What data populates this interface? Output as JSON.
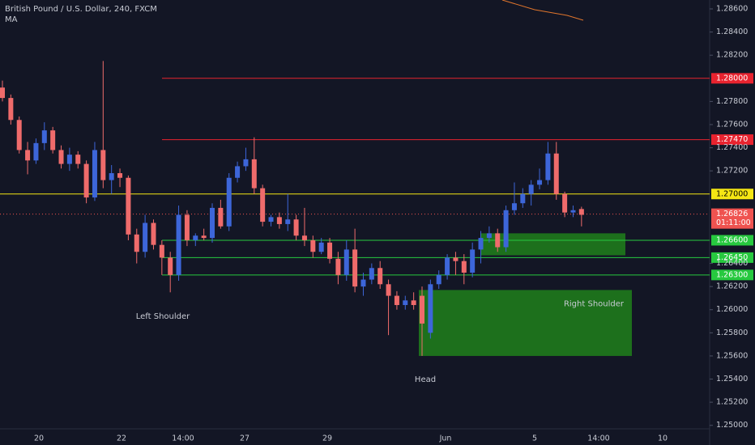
{
  "chart_data": {
    "type": "candlestick",
    "title": "British Pound / U.S. Dollar, 240, FXCM",
    "indicator": "MA",
    "up_color": "#3d66d9",
    "down_color": "#ef6b6b",
    "ylim": [
      1.2497,
      1.28677
    ],
    "yticks": [
      {
        "value": 1.286,
        "label": "1.28600"
      },
      {
        "value": 1.284,
        "label": "1.28400"
      },
      {
        "value": 1.282,
        "label": "1.28200"
      },
      {
        "value": 1.278,
        "label": "1.27800"
      },
      {
        "value": 1.276,
        "label": "1.27600"
      },
      {
        "value": 1.274,
        "label": "1.27400"
      },
      {
        "value": 1.272,
        "label": "1.27200"
      },
      {
        "value": 1.264,
        "label": "1.26400"
      },
      {
        "value": 1.262,
        "label": "1.26200"
      },
      {
        "value": 1.26,
        "label": "1.26000"
      },
      {
        "value": 1.258,
        "label": "1.25800"
      },
      {
        "value": 1.256,
        "label": "1.25600"
      },
      {
        "value": 1.254,
        "label": "1.25400"
      },
      {
        "value": 1.252,
        "label": "1.25200"
      },
      {
        "value": 1.25,
        "label": "1.25000"
      }
    ],
    "x_labels": [
      "20",
      "22",
      "14:00",
      "27",
      "29",
      "Jun",
      "5",
      "14:00",
      "10"
    ],
    "candles": [
      [
        1.2792,
        1.2798,
        1.278,
        1.2783
      ],
      [
        1.2783,
        1.2786,
        1.276,
        1.2764
      ],
      [
        1.2764,
        1.2767,
        1.2735,
        1.2738
      ],
      [
        1.2738,
        1.2745,
        1.2717,
        1.2729
      ],
      [
        1.2729,
        1.2748,
        1.2726,
        1.2744
      ],
      [
        1.2744,
        1.2762,
        1.2738,
        1.2755
      ],
      [
        1.2755,
        1.2758,
        1.2735,
        1.2738
      ],
      [
        1.2738,
        1.2742,
        1.2722,
        1.2726
      ],
      [
        1.2726,
        1.274,
        1.272,
        1.2734
      ],
      [
        1.2734,
        1.2737,
        1.2722,
        1.2726
      ],
      [
        1.2726,
        1.2729,
        1.2692,
        1.2697
      ],
      [
        1.2697,
        1.2745,
        1.2694,
        1.2738
      ],
      [
        1.2738,
        1.2815,
        1.2705,
        1.2712
      ],
      [
        1.2712,
        1.2725,
        1.27,
        1.2718
      ],
      [
        1.2718,
        1.2722,
        1.2706,
        1.2714
      ],
      [
        1.2714,
        1.2716,
        1.266,
        1.2665
      ],
      [
        1.2665,
        1.267,
        1.264,
        1.265
      ],
      [
        1.265,
        1.2682,
        1.2645,
        1.2675
      ],
      [
        1.2675,
        1.2678,
        1.2652,
        1.2656
      ],
      [
        1.2656,
        1.266,
        1.263,
        1.2645
      ],
      [
        1.2645,
        1.265,
        1.2615,
        1.263
      ],
      [
        1.263,
        1.269,
        1.2625,
        1.2682
      ],
      [
        1.2682,
        1.2686,
        1.2655,
        1.266
      ],
      [
        1.266,
        1.2666,
        1.2655,
        1.2664
      ],
      [
        1.2664,
        1.267,
        1.266,
        1.2662
      ],
      [
        1.2662,
        1.2692,
        1.2658,
        1.2688
      ],
      [
        1.2688,
        1.2695,
        1.267,
        1.2672
      ],
      [
        1.2672,
        1.2718,
        1.2668,
        1.2714
      ],
      [
        1.2714,
        1.2728,
        1.271,
        1.2724
      ],
      [
        1.2724,
        1.274,
        1.272,
        1.273
      ],
      [
        1.273,
        1.2749,
        1.27,
        1.2705
      ],
      [
        1.2705,
        1.2708,
        1.2672,
        1.2676
      ],
      [
        1.2676,
        1.2682,
        1.2672,
        1.268
      ],
      [
        1.268,
        1.2684,
        1.267,
        1.2674
      ],
      [
        1.2674,
        1.27,
        1.2668,
        1.2678
      ],
      [
        1.2678,
        1.2682,
        1.266,
        1.2664
      ],
      [
        1.2664,
        1.2688,
        1.2655,
        1.266
      ],
      [
        1.266,
        1.2664,
        1.2645,
        1.265
      ],
      [
        1.265,
        1.2662,
        1.2648,
        1.2658
      ],
      [
        1.2658,
        1.2662,
        1.264,
        1.2644
      ],
      [
        1.2644,
        1.265,
        1.2622,
        1.263
      ],
      [
        1.263,
        1.266,
        1.2625,
        1.2652
      ],
      [
        1.2652,
        1.267,
        1.2615,
        1.262
      ],
      [
        1.262,
        1.2632,
        1.2612,
        1.2626
      ],
      [
        1.2626,
        1.264,
        1.2622,
        1.2636
      ],
      [
        1.2636,
        1.2642,
        1.2618,
        1.2622
      ],
      [
        1.2622,
        1.2626,
        1.2578,
        1.2612
      ],
      [
        1.2612,
        1.2616,
        1.26,
        1.2604
      ],
      [
        1.2604,
        1.2612,
        1.26,
        1.2608
      ],
      [
        1.2608,
        1.2615,
        1.26,
        1.2604
      ],
      [
        1.2612,
        1.262,
        1.256,
        1.2588
      ],
      [
        1.258,
        1.2626,
        1.2575,
        1.2622
      ],
      [
        1.2622,
        1.2634,
        1.2618,
        1.263
      ],
      [
        1.263,
        1.2648,
        1.2626,
        1.2645
      ],
      [
        1.2645,
        1.265,
        1.263,
        1.2642
      ],
      [
        1.2642,
        1.2648,
        1.2622,
        1.2632
      ],
      [
        1.2632,
        1.2658,
        1.2628,
        1.2652
      ],
      [
        1.2652,
        1.2668,
        1.264,
        1.2662
      ],
      [
        1.2662,
        1.2672,
        1.2658,
        1.2666
      ],
      [
        1.2666,
        1.267,
        1.265,
        1.2654
      ],
      [
        1.2654,
        1.269,
        1.265,
        1.2686
      ],
      [
        1.2686,
        1.271,
        1.2682,
        1.2692
      ],
      [
        1.2692,
        1.2705,
        1.2688,
        1.27
      ],
      [
        1.27,
        1.2712,
        1.269,
        1.2708
      ],
      [
        1.2708,
        1.2722,
        1.2704,
        1.2712
      ],
      [
        1.2712,
        1.2745,
        1.2708,
        1.2735
      ],
      [
        1.2735,
        1.2745,
        1.2695,
        1.27
      ],
      [
        1.27,
        1.2702,
        1.268,
        1.2684
      ],
      [
        1.2684,
        1.269,
        1.268,
        1.2686
      ],
      [
        1.2687,
        1.2689,
        1.2672,
        1.2682
      ]
    ],
    "levels": [
      {
        "value": 1.28,
        "label": "1.28000",
        "color": "#e8232f"
      },
      {
        "value": 1.2747,
        "label": "1.27470",
        "color": "#e8232f"
      },
      {
        "value": 1.27,
        "label": "1.27000",
        "color": "#f5e614",
        "full": true
      },
      {
        "value": 1.266,
        "label": "1.26600",
        "color": "#27c93f"
      },
      {
        "value": 1.2645,
        "label": "1.26450",
        "color": "#27c93f"
      },
      {
        "value": 1.263,
        "label": "1.26300",
        "color": "#27c93f"
      }
    ],
    "last_price": {
      "value": 1.26826,
      "label": "1.26826",
      "countdown": "01:11:00",
      "color": "#ef5350"
    },
    "zones": [
      {
        "top": 1.2666,
        "bottom": 1.2647
      },
      {
        "top": 1.2617,
        "bottom": 1.256,
        "label": "Right Shoulder"
      }
    ],
    "annotations": [
      "Left Shoulder",
      "Head"
    ]
  }
}
